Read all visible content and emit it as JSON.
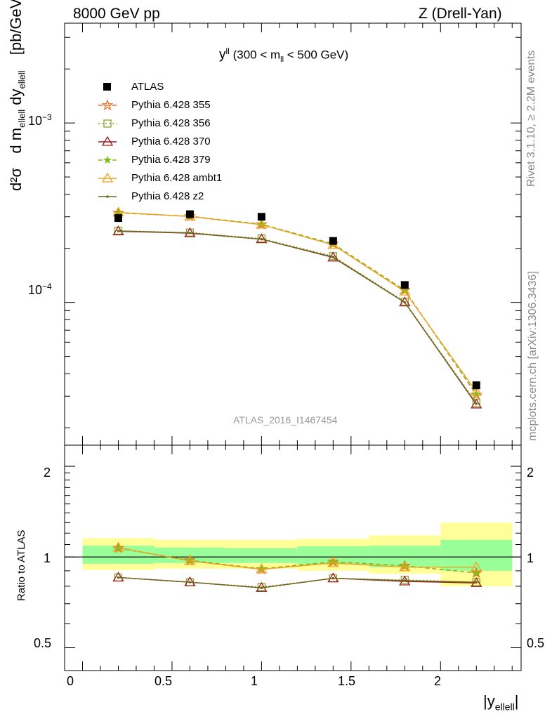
{
  "header": {
    "left": "8000 GeV pp",
    "right": "Z (Drell-Yan)"
  },
  "side_text": {
    "rivet": "Rivet 3.1.10, ≥ 2.2M events",
    "mcplots": "mcplots.cern.ch [arXiv:1306.3436]"
  },
  "main_panel": {
    "y_label_parts": {
      "num": "d²σ",
      "den": "d m",
      "sub1": "ellell",
      "dy": "dy",
      "sub2": "ellell",
      "units": "[pb/GeV]"
    },
    "annotation": {
      "y": "y",
      "sup": "ll",
      "range_prefix": "(300 < m",
      "range_sub": "ll",
      "range_suffix": "< 500 GeV)"
    },
    "y_tick_labels": [
      {
        "base": "10",
        "exp": "−3",
        "value": 0.001
      },
      {
        "base": "10",
        "exp": "−4",
        "value": 0.0001
      }
    ],
    "ref_name": "ATLAS_2016_I1467454"
  },
  "ratio_panel": {
    "y_label": "Ratio to ATLAS",
    "y_tick_labels": [
      "2",
      "1",
      "0.5"
    ]
  },
  "x_axis": {
    "label_main": "|y",
    "label_sub": "ellell",
    "label_end": "|",
    "tick_labels": [
      "0",
      "0.5",
      "1",
      "1.5",
      "2"
    ]
  },
  "chart_data": {
    "type": "line",
    "x_edges": [
      0,
      0.4,
      0.8,
      1.2,
      1.6,
      2.0,
      2.4
    ],
    "x": [
      0.2,
      0.6,
      1.0,
      1.4,
      1.8,
      2.2
    ],
    "main": {
      "yscale": "log",
      "ylim": [
        1.6e-05,
        0.0036
      ],
      "xlim": [
        -0.1,
        2.45
      ]
    },
    "ratio": {
      "yscale": "log",
      "ylim": [
        0.42,
        2.35
      ],
      "reference_line": 1,
      "band_inner": [
        [
          0.95,
          1.09
        ],
        [
          0.955,
          1.075
        ],
        [
          0.955,
          1.07
        ],
        [
          0.945,
          1.085
        ],
        [
          0.925,
          1.09
        ],
        [
          0.9,
          1.14
        ]
      ],
      "band_outer": [
        [
          0.905,
          1.155
        ],
        [
          0.915,
          1.14
        ],
        [
          0.915,
          1.14
        ],
        [
          0.9,
          1.15
        ],
        [
          0.88,
          1.18
        ],
        [
          0.8,
          1.3
        ]
      ]
    },
    "data": {
      "name": "ATLAS",
      "values": [
        0.000295,
        0.00031,
        0.0003,
        0.00022,
        0.000125,
        3.45e-05
      ],
      "color": "#000000"
    },
    "series": [
      {
        "name": "Pythia 6.428 355",
        "color": "#f26f21",
        "dash": "6,4",
        "marker": "star-open",
        "values": [
          0.000315,
          0.000302,
          0.000272,
          0.000212,
          0.000117,
          3.05e-05
        ],
        "ratio": [
          1.07,
          0.975,
          0.91,
          0.965,
          0.935,
          0.885
        ]
      },
      {
        "name": "Pythia 6.428 356",
        "color": "#8da22b",
        "dash": "2,3",
        "marker": "square-open",
        "values": [
          0.000251,
          0.000245,
          0.000227,
          0.000181,
          0.000101,
          2.75e-05
        ],
        "ratio": [
          0.855,
          0.825,
          0.795,
          0.85,
          0.84,
          0.825
        ]
      },
      {
        "name": "Pythia 6.428 370",
        "color": "#9b1b1b",
        "dash": "",
        "marker": "triangle-open",
        "values": [
          0.000249,
          0.000243,
          0.000225,
          0.000178,
          0.0001,
          2.7e-05
        ],
        "ratio": [
          0.855,
          0.825,
          0.79,
          0.85,
          0.83,
          0.82
        ]
      },
      {
        "name": "Pythia 6.428 379",
        "color": "#7fbf1f",
        "dash": "6,4",
        "marker": "star-filled",
        "values": [
          0.000316,
          0.000302,
          0.000273,
          0.000212,
          0.000116,
          3.08e-05
        ],
        "ratio": [
          1.07,
          0.975,
          0.915,
          0.965,
          0.935,
          0.885
        ]
      },
      {
        "name": "Pythia 6.428 ambt1",
        "color": "#f0a020",
        "dash": "",
        "marker": "triangle-open",
        "values": [
          0.000317,
          0.000301,
          0.000271,
          0.000209,
          0.000115,
          3.18e-05
        ],
        "ratio": [
          1.075,
          0.97,
          0.91,
          0.955,
          0.925,
          0.925
        ]
      },
      {
        "name": "Pythia 6.428 z2",
        "color": "#6b6b1f",
        "dash": "",
        "marker": "dot",
        "values": [
          0.00025,
          0.000244,
          0.000225,
          0.000179,
          0.0001,
          2.72e-05
        ],
        "ratio": [
          0.855,
          0.825,
          0.79,
          0.85,
          0.835,
          0.825
        ]
      }
    ]
  }
}
